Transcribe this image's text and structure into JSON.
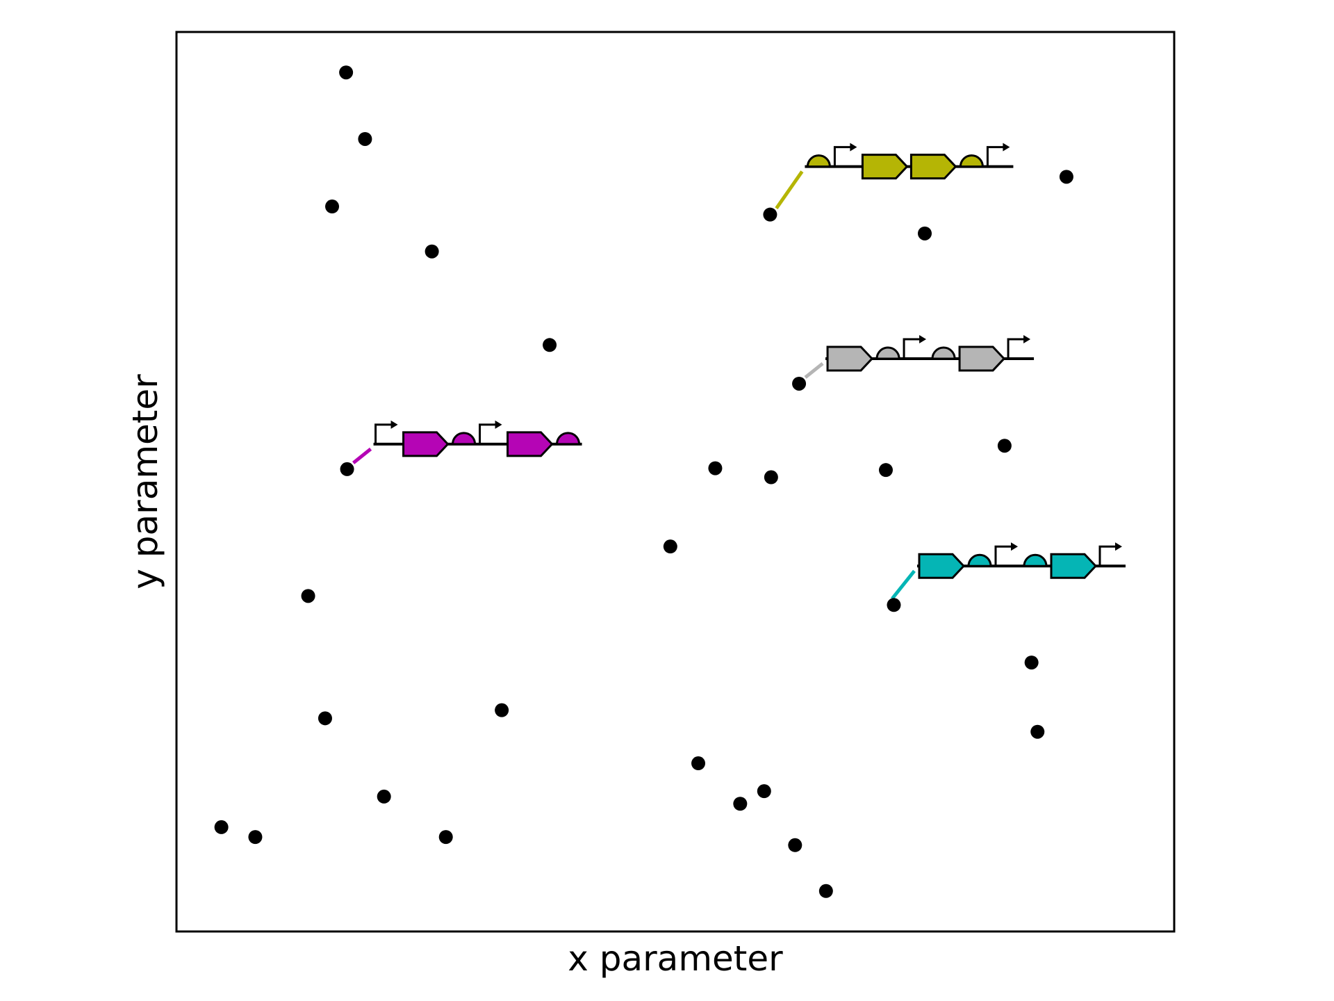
{
  "chart_data": {
    "type": "scatter",
    "title": "",
    "xlabel": "x parameter",
    "ylabel": "y parameter",
    "xlim": [
      0,
      10
    ],
    "ylim": [
      0,
      10
    ],
    "ticks": "none",
    "grid": false,
    "point_color": "#000000",
    "points": [
      {
        "x": 1.7,
        "y": 9.55
      },
      {
        "x": 1.89,
        "y": 8.81
      },
      {
        "x": 1.56,
        "y": 8.06
      },
      {
        "x": 2.56,
        "y": 7.56
      },
      {
        "x": 3.74,
        "y": 6.52
      },
      {
        "x": 1.71,
        "y": 5.14
      },
      {
        "x": 1.32,
        "y": 3.73
      },
      {
        "x": 1.49,
        "y": 2.37
      },
      {
        "x": 3.26,
        "y": 2.46
      },
      {
        "x": 2.08,
        "y": 1.5
      },
      {
        "x": 0.45,
        "y": 1.16
      },
      {
        "x": 0.79,
        "y": 1.05
      },
      {
        "x": 2.7,
        "y": 1.05
      },
      {
        "x": 5.95,
        "y": 7.97
      },
      {
        "x": 7.5,
        "y": 7.76
      },
      {
        "x": 8.92,
        "y": 8.39
      },
      {
        "x": 6.24,
        "y": 6.09
      },
      {
        "x": 5.4,
        "y": 5.15
      },
      {
        "x": 5.96,
        "y": 5.05
      },
      {
        "x": 7.11,
        "y": 5.13
      },
      {
        "x": 8.3,
        "y": 5.4
      },
      {
        "x": 4.95,
        "y": 4.28
      },
      {
        "x": 7.19,
        "y": 3.63
      },
      {
        "x": 8.57,
        "y": 2.99
      },
      {
        "x": 8.63,
        "y": 2.22
      },
      {
        "x": 5.23,
        "y": 1.87
      },
      {
        "x": 5.65,
        "y": 1.42
      },
      {
        "x": 5.89,
        "y": 1.56
      },
      {
        "x": 6.2,
        "y": 0.96
      },
      {
        "x": 6.51,
        "y": 0.45
      }
    ],
    "annotations": [
      {
        "name": "magenta-construct",
        "x": 1.71,
        "y": 5.14,
        "color": "#b505b5",
        "parts": [
          "promoter",
          "cds",
          "terminator",
          "promoter",
          "cds",
          "terminator"
        ]
      },
      {
        "name": "olive-construct",
        "x": 5.95,
        "y": 7.97,
        "color": "#b5b505",
        "parts": [
          "terminator",
          "promoter",
          "cds",
          "cds",
          "terminator",
          "promoter"
        ]
      },
      {
        "name": "gray-construct",
        "x": 6.24,
        "y": 6.09,
        "color": "#b5b5b5",
        "parts": [
          "cds",
          "terminator",
          "promoter",
          "terminator",
          "cds",
          "promoter"
        ]
      },
      {
        "name": "teal-construct",
        "x": 7.11,
        "y": 3.63,
        "color": "#05b5b5",
        "parts": [
          "cds",
          "terminator",
          "promoter",
          "terminator",
          "cds",
          "promoter"
        ]
      }
    ]
  }
}
